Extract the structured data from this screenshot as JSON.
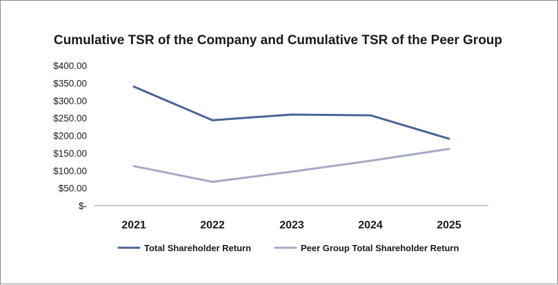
{
  "chart_data": {
    "type": "line",
    "title": "Cumulative TSR of the Company and Cumulative TSR of the Peer Group",
    "xlabel": "",
    "ylabel": "",
    "categories": [
      "2021",
      "2022",
      "2023",
      "2024",
      "2025"
    ],
    "y_tick_labels": [
      "$-",
      "$50.00",
      "$100.00",
      "$150.00",
      "$200.00",
      "$250.00",
      "$300.00",
      "$350.00",
      "$400.00"
    ],
    "y_tick_values": [
      0,
      50,
      100,
      150,
      200,
      250,
      300,
      350,
      400
    ],
    "ylim": [
      0,
      400
    ],
    "grid": false,
    "legend_position": "bottom",
    "series": [
      {
        "name": "Total Shareholder Return",
        "values": [
          340,
          244,
          260,
          258,
          191
        ],
        "color": "#4a6496"
      },
      {
        "name": "Peer Group Total Shareholder Return",
        "values": [
          113,
          68,
          97,
          128,
          162
        ],
        "color": "#a3a9c6"
      }
    ]
  }
}
